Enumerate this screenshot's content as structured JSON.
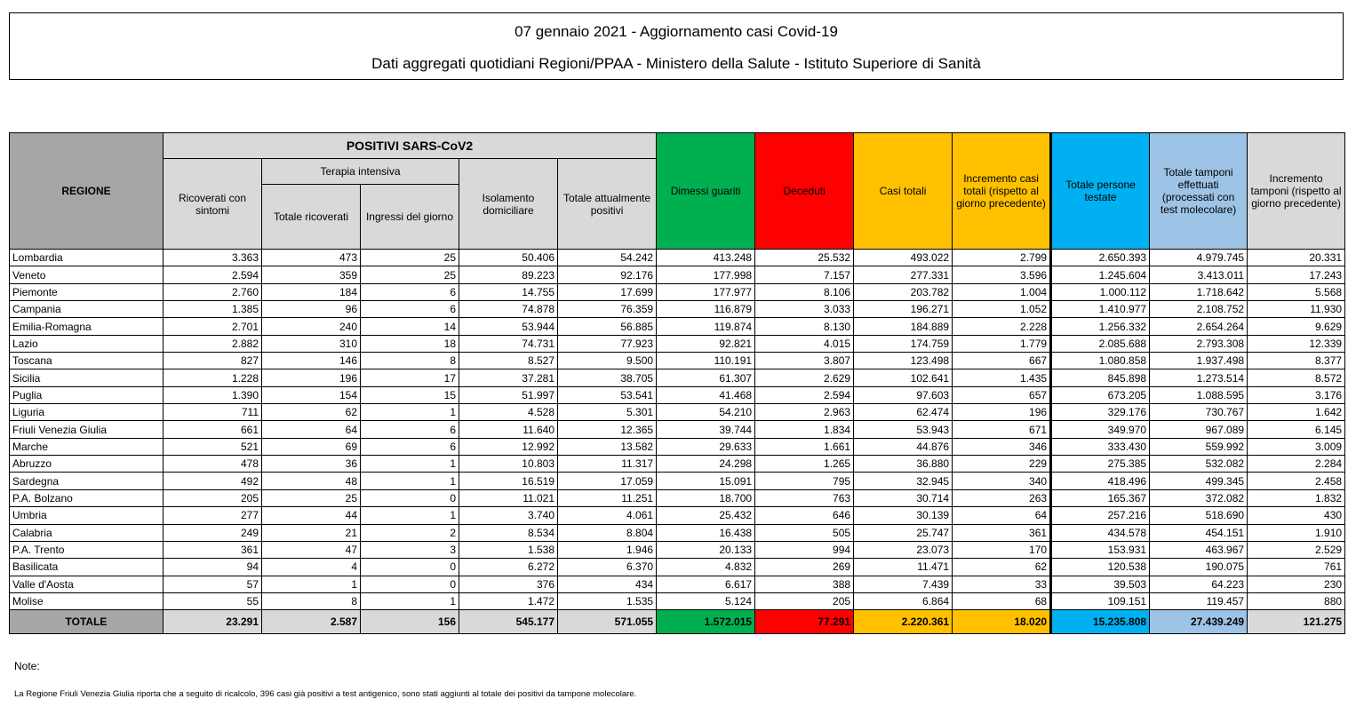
{
  "title": {
    "line1": "07 gennaio 2021 - Aggiornamento casi Covid-19",
    "line2": "Dati aggregati quotidiani Regioni/PPAA - Ministero della Salute - Istituto Superiore di Sanità"
  },
  "headers": {
    "regione": "REGIONE",
    "positivi": "POSITIVI SARS-CoV2",
    "ricoverati": "Ricoverati con sintomi",
    "terapia": "Terapia intensiva",
    "totale_ricoverati": "Totale ricoverati",
    "ingressi": "Ingressi del giorno",
    "isolamento": "Isolamento domiciliare",
    "totale_positivi": "Totale attualmente positivi",
    "dimessi": "Dimessi guariti",
    "deceduti": "Deceduti",
    "casi_totali": "Casi totali",
    "incremento_casi": "Incremento casi totali (rispetto al giorno precedente)",
    "persone_testate": "Totale persone testate",
    "tamponi": "Totale tamponi effettuati (processati con test molecolare)",
    "incremento_tamponi": "Incremento tamponi (rispetto al giorno precedente)"
  },
  "colors": {
    "dimessi": "#00b050",
    "deceduti": "#ff0000",
    "casi_totali": "#ffc000",
    "persone_testate": "#00b0f0",
    "tamponi": "#9dc3e6",
    "header_grey": "#d9d9d9",
    "regione_grey": "#a6a6a6"
  },
  "rows": [
    [
      "Lombardia",
      "3.363",
      "473",
      "25",
      "50.406",
      "54.242",
      "413.248",
      "25.532",
      "493.022",
      "2.799",
      "2.650.393",
      "4.979.745",
      "20.331"
    ],
    [
      "Veneto",
      "2.594",
      "359",
      "25",
      "89.223",
      "92.176",
      "177.998",
      "7.157",
      "277.331",
      "3.596",
      "1.245.604",
      "3.413.011",
      "17.243"
    ],
    [
      "Piemonte",
      "2.760",
      "184",
      "6",
      "14.755",
      "17.699",
      "177.977",
      "8.106",
      "203.782",
      "1.004",
      "1.000.112",
      "1.718.642",
      "5.568"
    ],
    [
      "Campania",
      "1.385",
      "96",
      "6",
      "74.878",
      "76.359",
      "116.879",
      "3.033",
      "196.271",
      "1.052",
      "1.410.977",
      "2.108.752",
      "11.930"
    ],
    [
      "Emilia-Romagna",
      "2.701",
      "240",
      "14",
      "53.944",
      "56.885",
      "119.874",
      "8.130",
      "184.889",
      "2.228",
      "1.256.332",
      "2.654.264",
      "9.629"
    ],
    [
      "Lazio",
      "2.882",
      "310",
      "18",
      "74.731",
      "77.923",
      "92.821",
      "4.015",
      "174.759",
      "1.779",
      "2.085.688",
      "2.793.308",
      "12.339"
    ],
    [
      "Toscana",
      "827",
      "146",
      "8",
      "8.527",
      "9.500",
      "110.191",
      "3.807",
      "123.498",
      "667",
      "1.080.858",
      "1.937.498",
      "8.377"
    ],
    [
      "Sicilia",
      "1.228",
      "196",
      "17",
      "37.281",
      "38.705",
      "61.307",
      "2.629",
      "102.641",
      "1.435",
      "845.898",
      "1.273.514",
      "8.572"
    ],
    [
      "Puglia",
      "1.390",
      "154",
      "15",
      "51.997",
      "53.541",
      "41.468",
      "2.594",
      "97.603",
      "657",
      "673.205",
      "1.088.595",
      "3.176"
    ],
    [
      "Liguria",
      "711",
      "62",
      "1",
      "4.528",
      "5.301",
      "54.210",
      "2.963",
      "62.474",
      "196",
      "329.176",
      "730.767",
      "1.642"
    ],
    [
      "Friuli Venezia Giulia",
      "661",
      "64",
      "6",
      "11.640",
      "12.365",
      "39.744",
      "1.834",
      "53.943",
      "671",
      "349.970",
      "967.089",
      "6.145"
    ],
    [
      "Marche",
      "521",
      "69",
      "6",
      "12.992",
      "13.582",
      "29.633",
      "1.661",
      "44.876",
      "346",
      "333.430",
      "559.992",
      "3.009"
    ],
    [
      "Abruzzo",
      "478",
      "36",
      "1",
      "10.803",
      "11.317",
      "24.298",
      "1.265",
      "36.880",
      "229",
      "275.385",
      "532.082",
      "2.284"
    ],
    [
      "Sardegna",
      "492",
      "48",
      "1",
      "16.519",
      "17.059",
      "15.091",
      "795",
      "32.945",
      "340",
      "418.496",
      "499.345",
      "2.458"
    ],
    [
      "P.A. Bolzano",
      "205",
      "25",
      "0",
      "11.021",
      "11.251",
      "18.700",
      "763",
      "30.714",
      "263",
      "165.367",
      "372.082",
      "1.832"
    ],
    [
      "Umbria",
      "277",
      "44",
      "1",
      "3.740",
      "4.061",
      "25.432",
      "646",
      "30.139",
      "64",
      "257.216",
      "518.690",
      "430"
    ],
    [
      "Calabria",
      "249",
      "21",
      "2",
      "8.534",
      "8.804",
      "16.438",
      "505",
      "25.747",
      "361",
      "434.578",
      "454.151",
      "1.910"
    ],
    [
      "P.A. Trento",
      "361",
      "47",
      "3",
      "1.538",
      "1.946",
      "20.133",
      "994",
      "23.073",
      "170",
      "153.931",
      "463.967",
      "2.529"
    ],
    [
      "Basilicata",
      "94",
      "4",
      "0",
      "6.272",
      "6.370",
      "4.832",
      "269",
      "11.471",
      "62",
      "120.538",
      "190.075",
      "761"
    ],
    [
      "Valle d'Aosta",
      "57",
      "1",
      "0",
      "376",
      "434",
      "6.617",
      "388",
      "7.439",
      "33",
      "39.503",
      "64.223",
      "230"
    ],
    [
      "Molise",
      "55",
      "8",
      "1",
      "1.472",
      "1.535",
      "5.124",
      "205",
      "6.864",
      "68",
      "109.151",
      "119.457",
      "880"
    ]
  ],
  "totals": [
    "TOTALE",
    "23.291",
    "2.587",
    "156",
    "545.177",
    "571.055",
    "1.572.015",
    "77.291",
    "2.220.361",
    "18.020",
    "15.235.808",
    "27.439.249",
    "121.275"
  ],
  "notes": {
    "heading": "Note:",
    "text": "La Regione Friuli Venezia Giulia riporta che a seguito di ricalcolo, 396 casi già positivi a test antigenico, sono stati aggiunti al totale dei positivi da tampone molecolare."
  }
}
